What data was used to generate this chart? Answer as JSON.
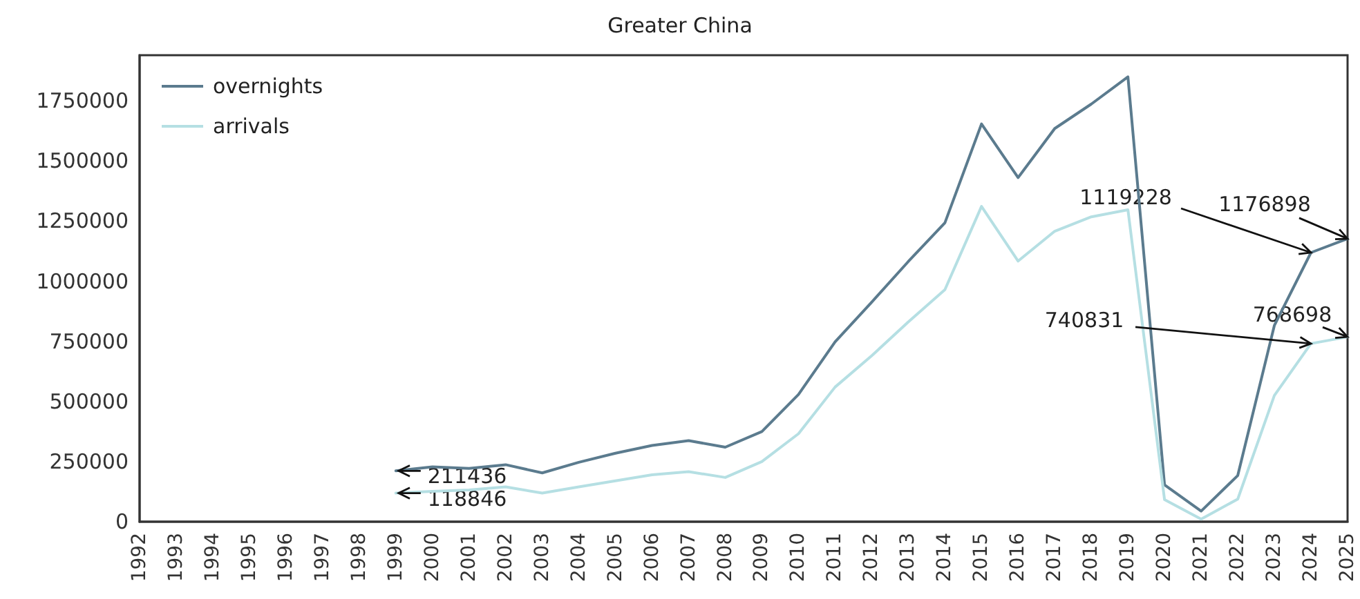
{
  "chart_data": {
    "type": "line",
    "title": "Greater China",
    "x": [
      1999,
      2000,
      2001,
      2002,
      2003,
      2004,
      2005,
      2006,
      2007,
      2008,
      2009,
      2010,
      2011,
      2012,
      2013,
      2014,
      2015,
      2016,
      2017,
      2018,
      2019,
      2020,
      2021,
      2022,
      2023,
      2024,
      2025
    ],
    "series": [
      {
        "name": "overnights",
        "color": "#5b7b8e",
        "values": [
          211436,
          228000,
          222000,
          237000,
          203000,
          247000,
          285000,
          317000,
          337000,
          310000,
          375000,
          529000,
          748000,
          913000,
          1082000,
          1243000,
          1654000,
          1431000,
          1635000,
          1737000,
          1850000,
          153000,
          44000,
          192000,
          816000,
          1119228,
          1176898
        ]
      },
      {
        "name": "arrivals",
        "color": "#b5dfe3",
        "values": [
          118846,
          126000,
          132000,
          145000,
          119000,
          145000,
          170000,
          195000,
          208000,
          184000,
          250000,
          366000,
          560000,
          690000,
          831000,
          965000,
          1311000,
          1084000,
          1208000,
          1268000,
          1297000,
          92000,
          11000,
          94000,
          525000,
          740831,
          768698
        ]
      }
    ],
    "xlim": [
      1992,
      2025
    ],
    "xticks": [
      1992,
      1993,
      1994,
      1995,
      1996,
      1997,
      1998,
      1999,
      2000,
      2001,
      2002,
      2003,
      2004,
      2005,
      2006,
      2007,
      2008,
      2009,
      2010,
      2011,
      2012,
      2013,
      2014,
      2015,
      2016,
      2017,
      2018,
      2019,
      2020,
      2021,
      2022,
      2023,
      2024,
      2025
    ],
    "ylim": [
      0,
      1940000
    ],
    "yticks": [
      0,
      250000,
      500000,
      750000,
      1000000,
      1250000,
      1500000,
      1750000
    ],
    "annotations": [
      {
        "text": "211436",
        "x": 1999,
        "y": 211436
      },
      {
        "text": "118846",
        "x": 1999,
        "y": 118846
      },
      {
        "text": "1119228",
        "x": 2024,
        "y": 1119228
      },
      {
        "text": "1176898",
        "x": 2025,
        "y": 1176898
      },
      {
        "text": "740831",
        "x": 2024,
        "y": 740831
      },
      {
        "text": "768698",
        "x": 2025,
        "y": 768698
      }
    ],
    "legend": "top left",
    "grid": false,
    "marker": "none",
    "line_style": "solid"
  }
}
